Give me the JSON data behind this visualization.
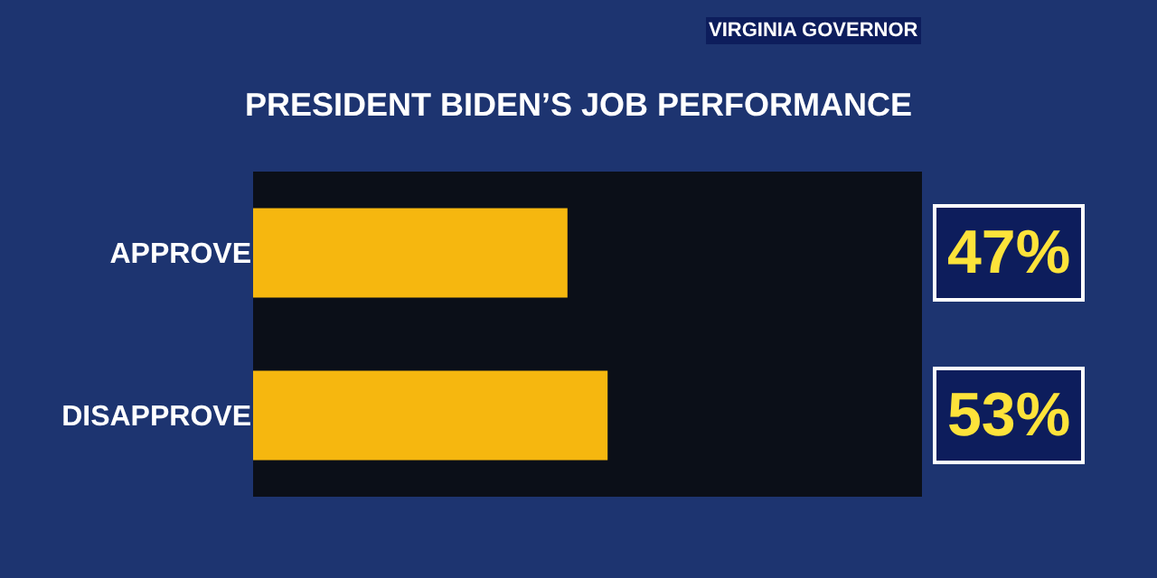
{
  "chart_data": {
    "type": "bar",
    "orientation": "horizontal",
    "title": "PRESIDENT BIDEN’S JOB PERFORMANCE",
    "subtitle": "VIRGINIA GOVERNOR",
    "categories": [
      "APPROVE",
      "DISAPPROVE"
    ],
    "values": [
      47,
      53
    ],
    "color": "#f6b70f",
    "value_labels": [
      "47%",
      "53%"
    ],
    "xlim": [
      0,
      100
    ],
    "tick_labels": "y",
    "grid": false,
    "legend": false
  }
}
